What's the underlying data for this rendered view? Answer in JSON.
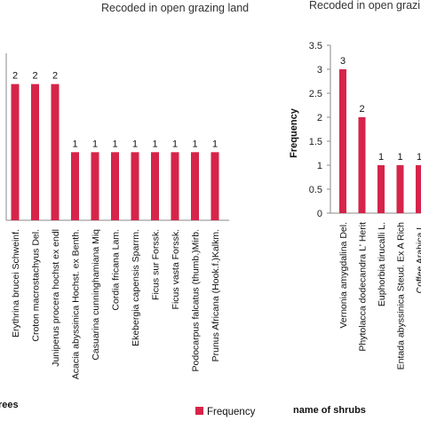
{
  "chart_data": [
    {
      "type": "bar",
      "title": "Recoded in open grazing land",
      "xlabel": "rees",
      "ylabel": "",
      "ylim": [
        0,
        3
      ],
      "yticks": [],
      "categories": [
        "Erythrina brucei Schweinf.",
        "Croton macrostachyus Del.",
        "Juniperus procera hochst ex endl",
        "Acacia abyssinica Hochst. ex Benth.",
        "Casuarina cunninghamiana Miq",
        "Cordia fricana Lam.",
        "Ekebergia capensis Sparrm.",
        "Ficus  sur Forssk.",
        "Ficus vasta Forssk.",
        "Podocarpus falcatus (thumb.)Mirb.",
        "Prunus Africana (Hook.f.)Kalkm."
      ],
      "series": [
        {
          "name": "Frequency",
          "values": [
            2,
            2,
            2,
            1,
            1,
            1,
            1,
            1,
            1,
            1,
            1
          ]
        }
      ],
      "data_labels": [
        "2",
        "2",
        "2",
        "1",
        "1",
        "1",
        "1",
        "1",
        "1",
        "1",
        "1"
      ],
      "color": "#d6244a",
      "legend": "bottom"
    },
    {
      "type": "bar",
      "title": "Recoded in open grazing",
      "xlabel": "name of shrubs",
      "ylabel": "Frequency",
      "ylim": [
        0,
        3.5
      ],
      "yticks": [
        "0",
        "0.5",
        "1",
        "1.5",
        "2",
        "2.5",
        "3",
        "3.5"
      ],
      "categories": [
        "Vernonia  amygdalina Del.",
        "Phytolacca dodecandra  L' Herit",
        "Euphorbia tirucalli  L.",
        "Entada abyssinica Steud. Ex A Rich",
        "Coffee Arabica L."
      ],
      "series": [
        {
          "name": "Frequency",
          "values": [
            3,
            2,
            1,
            1,
            1
          ]
        }
      ],
      "data_labels": [
        "3",
        "2",
        "1",
        "1",
        "1"
      ],
      "color": "#d6244a",
      "legend": "none"
    }
  ],
  "legend": {
    "label": "Frequency",
    "color": "#d6244a"
  }
}
